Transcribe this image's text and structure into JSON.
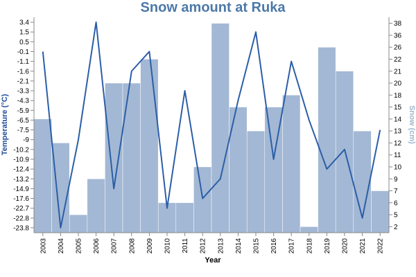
{
  "chart_data": {
    "type": "bar+line",
    "title": "Snow amount at Ruka",
    "x": {
      "label": "Year",
      "categories": [
        "2003",
        "2004",
        "2005",
        "2006",
        "2007",
        "2008",
        "2009",
        "2010",
        "2011",
        "2012",
        "2013",
        "2014",
        "2015",
        "2016",
        "2017",
        "2018",
        "2019",
        "2020",
        "2021",
        "2022"
      ]
    },
    "bar_series": {
      "name": "Snow (cm)",
      "axis": "right",
      "values": [
        14,
        12,
        5,
        9,
        20,
        20,
        22,
        6,
        6,
        10,
        38,
        15,
        13,
        15,
        18,
        2,
        26,
        21,
        13,
        7
      ]
    },
    "line_series": {
      "name": "Temperature (°C)",
      "axis": "left",
      "values": [
        0.0,
        -23.8,
        -9.0,
        3.4,
        -15.8,
        -1.6,
        -0.6,
        -21.6,
        -3.3,
        -17.6,
        -13.2,
        -4.3,
        1.5,
        -11.1,
        -1.1,
        -6.5,
        -12.4,
        -10.2,
        -22.8,
        -8.0
      ]
    },
    "left_axis": {
      "label": "Temperature (°C)",
      "ticks": [
        "3.4",
        "1.5",
        "0.5",
        "-0.1",
        "-1.1",
        "-1.6",
        "-2.1",
        "-3.3",
        "-4.3",
        "-5.9",
        "-6.5",
        "-7.5",
        "-9",
        "-10.2",
        "-10.9",
        "-12.4",
        "-13.2",
        "-14.9",
        "-17.6",
        "-22.7",
        "-22.8",
        "-23.8"
      ]
    },
    "right_axis": {
      "label": "Snow (cm)",
      "ticks": [
        38,
        36,
        26,
        22,
        21,
        20,
        18,
        15,
        14,
        13,
        12,
        11,
        10,
        9,
        7,
        6,
        5,
        2
      ]
    },
    "grid": false,
    "colors": {
      "title": "#4c78a8",
      "bar": "#a3b8d4",
      "line": "#2b5ea7",
      "left_axis_label": "#1f4e9c",
      "right_axis_label": "#9fb6cd"
    }
  }
}
